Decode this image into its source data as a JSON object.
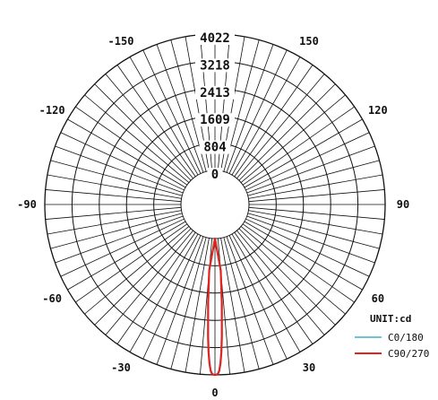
{
  "chart_data": {
    "type": "polar",
    "unit_label": "UNIT:cd",
    "radial_ticks": [
      "0",
      "804",
      "1609",
      "2413",
      "3218",
      "4022"
    ],
    "radial_values": [
      0,
      804,
      1609,
      2413,
      3218,
      4022
    ],
    "rmax": 4022,
    "angle_labels": [
      {
        "text": "-150",
        "angle": -150
      },
      {
        "text": "150",
        "angle": 150
      },
      {
        "text": "-120",
        "angle": -120
      },
      {
        "text": "120",
        "angle": 120
      },
      {
        "text": "-90",
        "angle": -90
      },
      {
        "text": "90",
        "angle": 90
      },
      {
        "text": "-60",
        "angle": -60
      },
      {
        "text": "60",
        "angle": 60
      },
      {
        "text": "-30",
        "angle": -30
      },
      {
        "text": "30",
        "angle": 30
      },
      {
        "text": "0",
        "angle": 0
      }
    ],
    "series": [
      {
        "name": "C0/180",
        "color": "#6fc3d6",
        "angles": [
          -5,
          -4,
          -3,
          -2.5,
          -2,
          -1.5,
          -1,
          -0.5,
          0,
          0.5,
          1,
          1.5,
          2,
          2.5,
          3,
          4,
          5
        ],
        "values": [
          900,
          1800,
          2800,
          3300,
          3650,
          3880,
          3980,
          4015,
          4022,
          4015,
          3980,
          3880,
          3650,
          3300,
          2800,
          1800,
          900
        ]
      },
      {
        "name": "C90/270",
        "color": "#e0231c",
        "angles": [
          -5,
          -4,
          -3,
          -2.5,
          -2,
          -1.5,
          -1,
          -0.5,
          0,
          0.5,
          1,
          1.5,
          2,
          2.5,
          3,
          4,
          5
        ],
        "values": [
          950,
          1900,
          2900,
          3350,
          3680,
          3900,
          3990,
          4018,
          4022,
          4018,
          3990,
          3900,
          3680,
          3350,
          2900,
          1900,
          950
        ]
      }
    ]
  }
}
